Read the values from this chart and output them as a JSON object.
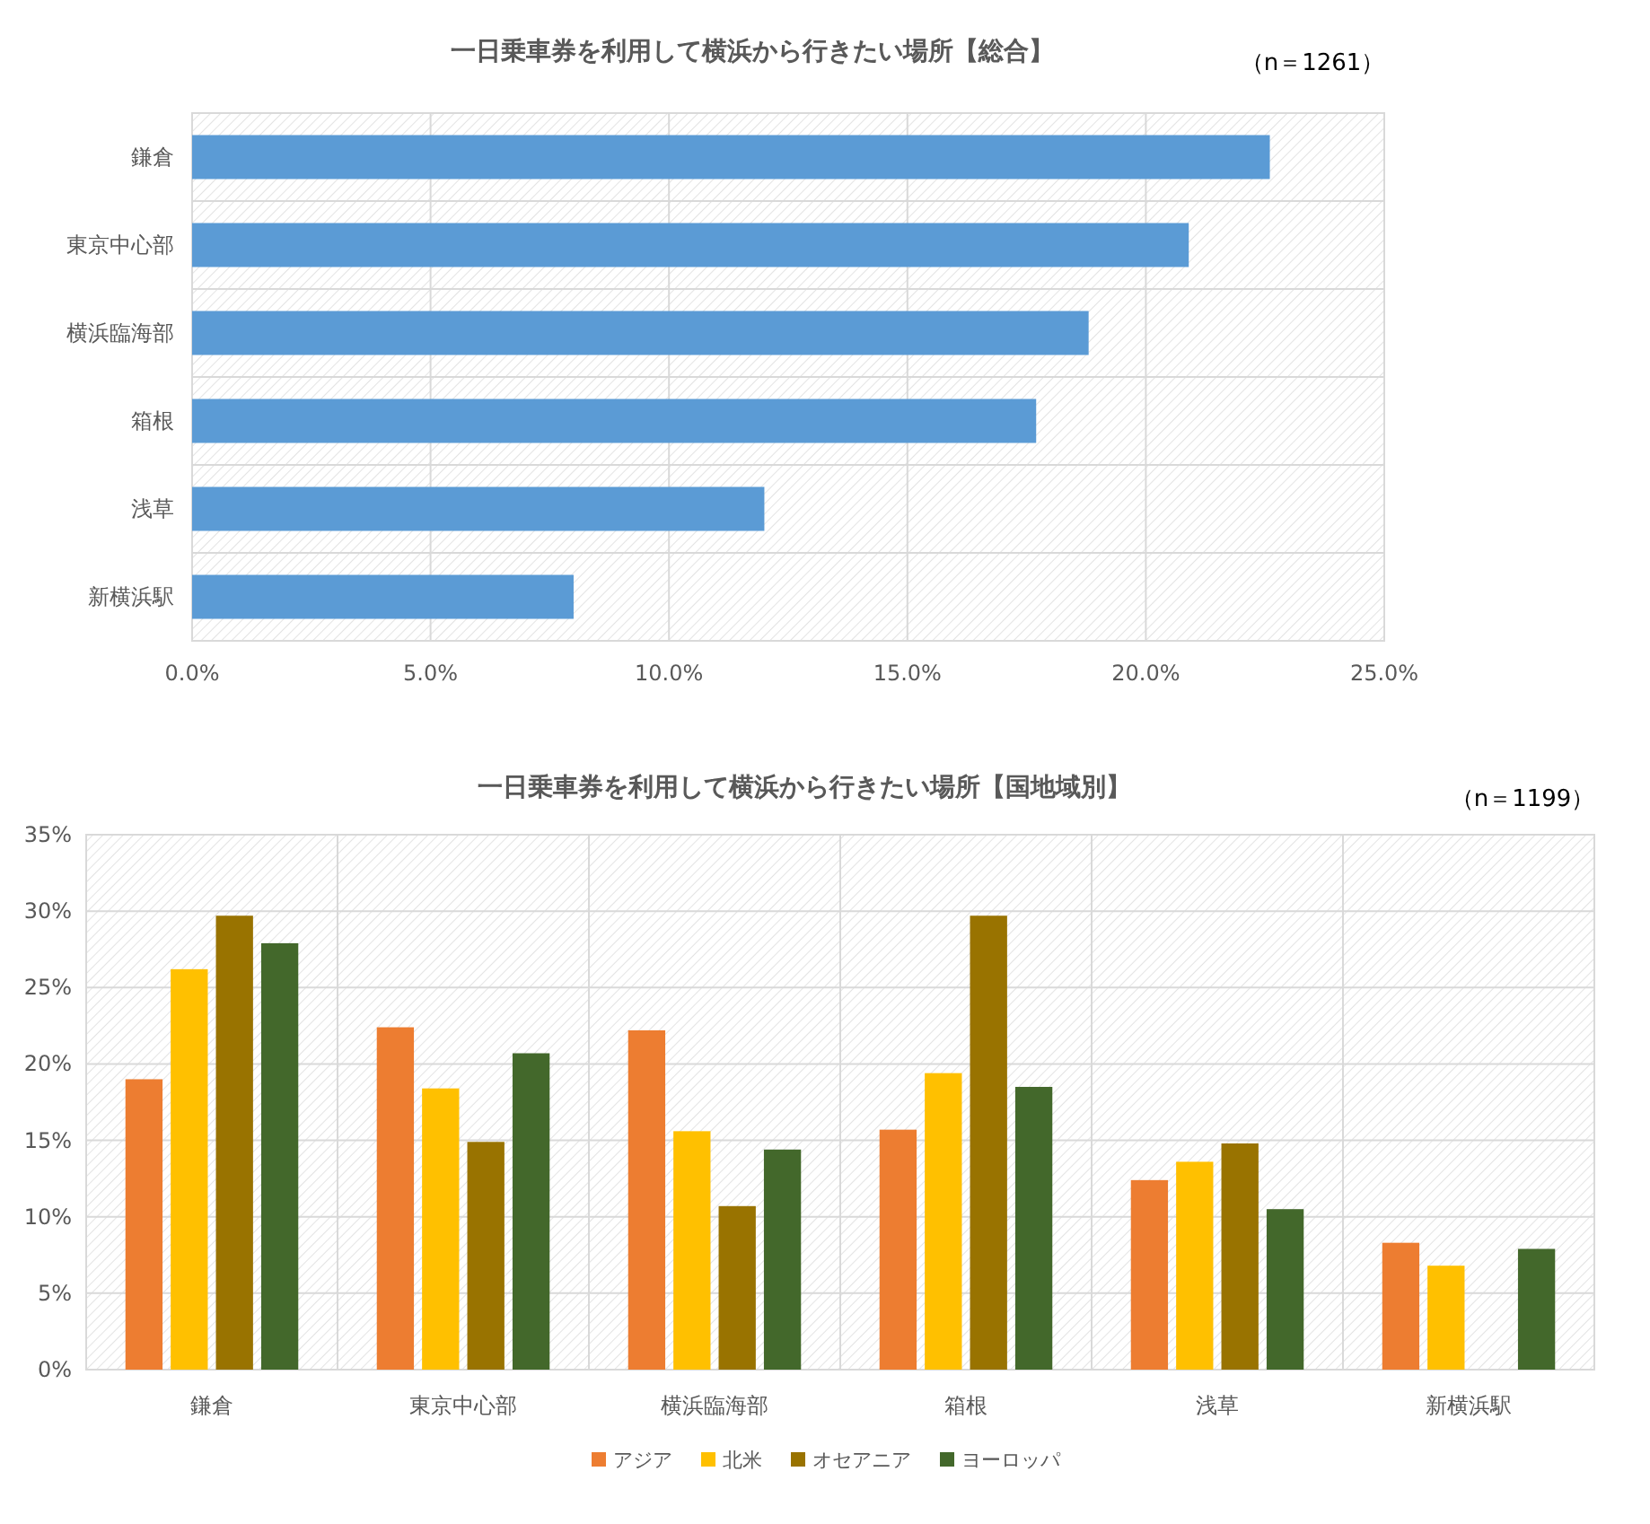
{
  "chart_data": [
    {
      "type": "bar",
      "orientation": "horizontal",
      "title": "一日乗車券を利用して横浜から行きたい場所【総合】",
      "annotations": [
        "（n＝1261）"
      ],
      "categories": [
        "鎌倉",
        "東京中心部",
        "横浜臨海部",
        "箱根",
        "浅草",
        "新横浜駅"
      ],
      "values": [
        22.6,
        20.9,
        18.8,
        17.7,
        12.0,
        8.0
      ],
      "color": "#5b9bd5",
      "xlim": [
        0,
        25
      ],
      "xticks": [
        {
          "value": 0,
          "label": "0.0%"
        },
        {
          "value": 5,
          "label": "5.0%"
        },
        {
          "value": 10,
          "label": "10.0%"
        },
        {
          "value": 15,
          "label": "15.0%"
        },
        {
          "value": 20,
          "label": "20.0%"
        },
        {
          "value": 25,
          "label": "25.0%"
        }
      ],
      "grid": true
    },
    {
      "type": "bar",
      "title": "一日乗車券を利用して横浜から行きたい場所【国地域別】",
      "annotations": [
        "（n＝1199）"
      ],
      "categories": [
        "鎌倉",
        "東京中心部",
        "横浜臨海部",
        "箱根",
        "浅草",
        "新横浜駅"
      ],
      "series": [
        {
          "name": "アジア",
          "color": "#ed7d31",
          "values": [
            19.0,
            22.4,
            22.2,
            15.7,
            12.4,
            8.3
          ]
        },
        {
          "name": "北米",
          "color": "#ffc000",
          "values": [
            26.2,
            18.4,
            15.6,
            19.4,
            13.6,
            6.8
          ]
        },
        {
          "name": "オセアニア",
          "color": "#997300",
          "values": [
            29.7,
            14.9,
            10.7,
            29.7,
            14.8,
            0
          ]
        },
        {
          "name": "ヨーロッパ",
          "color": "#43682b",
          "values": [
            27.9,
            20.7,
            14.4,
            18.5,
            10.5,
            7.9
          ]
        }
      ],
      "ylim": [
        0,
        35
      ],
      "yticks": [
        {
          "value": 0,
          "label": "0%"
        },
        {
          "value": 5,
          "label": "5%"
        },
        {
          "value": 10,
          "label": "10%"
        },
        {
          "value": 15,
          "label": "15%"
        },
        {
          "value": 20,
          "label": "20%"
        },
        {
          "value": 25,
          "label": "25%"
        },
        {
          "value": 30,
          "label": "30%"
        },
        {
          "value": 35,
          "label": "35%"
        }
      ],
      "grid": true,
      "legend": "bottom"
    }
  ]
}
